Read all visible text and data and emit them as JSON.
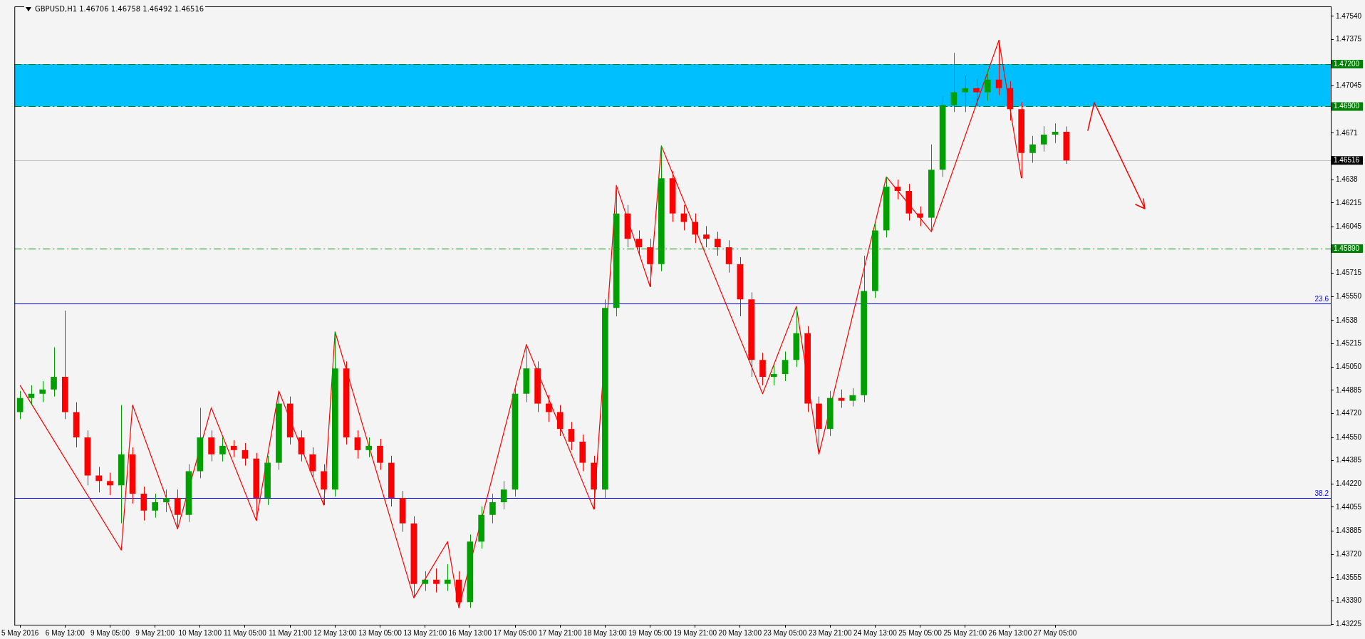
{
  "chart_data": {
    "type": "candlestick",
    "title": "GBPUSD,H1  1.46706 1.46758 1.46492 1.46516",
    "categories": [
      "5 May 2016",
      null,
      null,
      null,
      "6 May 13:00",
      null,
      null,
      null,
      "9 May 05:00",
      null,
      null,
      null,
      "9 May 21:00",
      null,
      null,
      null,
      "10 May 13:00",
      null,
      null,
      null,
      "11 May 05:00",
      null,
      null,
      null,
      "11 May 21:00",
      null,
      null,
      null,
      "12 May 13:00",
      null,
      null,
      null,
      "13 May 05:00",
      null,
      null,
      null,
      "13 May 21:00",
      null,
      null,
      null,
      "16 May 13:00",
      null,
      null,
      null,
      "17 May 05:00",
      null,
      null,
      null,
      "17 May 21:00",
      null,
      null,
      null,
      "18 May 13:00",
      null,
      null,
      null,
      "19 May 05:00",
      null,
      null,
      null,
      "19 May 21:00",
      null,
      null,
      null,
      "20 May 13:00",
      null,
      null,
      null,
      "23 May 05:00",
      null,
      null,
      null,
      "23 May 21:00",
      null,
      null,
      null,
      "24 May 13:00",
      null,
      null,
      null,
      "25 May 05:00",
      null,
      null,
      null,
      "25 May 21:00",
      null,
      null,
      null,
      "26 May 13:00",
      null,
      null,
      null,
      "27 May 05:00",
      null,
      null,
      null,
      null,
      null,
      null,
      null,
      null,
      null,
      null,
      null,
      null,
      null,
      null,
      null,
      null,
      null,
      null,
      null,
      null,
      null,
      null,
      null,
      null
    ],
    "ohlc": [
      [
        1.4473,
        1.4488,
        1.4468,
        1.4483
      ],
      [
        1.4483,
        1.4492,
        1.4478,
        1.4486
      ],
      [
        1.4486,
        1.4495,
        1.448,
        1.4489
      ],
      [
        1.4489,
        1.4519,
        1.4484,
        1.4498
      ],
      [
        1.4498,
        1.4545,
        1.4468,
        1.4473
      ],
      [
        1.4473,
        1.448,
        1.4448,
        1.4455
      ],
      [
        1.4455,
        1.446,
        1.4421,
        1.4428
      ],
      [
        1.4428,
        1.4434,
        1.4416,
        1.4424
      ],
      [
        1.4424,
        1.443,
        1.4414,
        1.4421
      ],
      [
        1.4421,
        1.4478,
        1.4394,
        1.4443
      ],
      [
        1.4443,
        1.4448,
        1.4408,
        1.4415
      ],
      [
        1.4415,
        1.442,
        1.4396,
        1.4403
      ],
      [
        1.4403,
        1.4415,
        1.4398,
        1.4409
      ],
      [
        1.4409,
        1.4418,
        1.4402,
        1.4412
      ],
      [
        1.4412,
        1.4418,
        1.4391,
        1.44
      ],
      [
        1.44,
        1.4436,
        1.4395,
        1.4431
      ],
      [
        1.4431,
        1.4476,
        1.4426,
        1.4455
      ],
      [
        1.4455,
        1.446,
        1.4438,
        1.4443
      ],
      [
        1.4443,
        1.4455,
        1.4438,
        1.4449
      ],
      [
        1.4449,
        1.4453,
        1.4441,
        1.4446
      ],
      [
        1.4446,
        1.4451,
        1.4435,
        1.444
      ],
      [
        1.444,
        1.4444,
        1.4396,
        1.4412
      ],
      [
        1.4412,
        1.4442,
        1.4407,
        1.4437
      ],
      [
        1.4437,
        1.4488,
        1.4432,
        1.4479
      ],
      [
        1.4479,
        1.4484,
        1.445,
        1.4455
      ],
      [
        1.4455,
        1.446,
        1.4438,
        1.4443
      ],
      [
        1.4443,
        1.4448,
        1.4426,
        1.4431
      ],
      [
        1.4431,
        1.4436,
        1.4407,
        1.4418
      ],
      [
        1.4418,
        1.453,
        1.4413,
        1.4504
      ],
      [
        1.4504,
        1.4509,
        1.445,
        1.4455
      ],
      [
        1.4455,
        1.446,
        1.444,
        1.4446
      ],
      [
        1.4446,
        1.4455,
        1.4441,
        1.4449
      ],
      [
        1.4449,
        1.4454,
        1.4432,
        1.4437
      ],
      [
        1.4437,
        1.4442,
        1.4406,
        1.4412
      ],
      [
        1.4412,
        1.4417,
        1.4388,
        1.4394
      ],
      [
        1.4394,
        1.4399,
        1.4342,
        1.4351
      ],
      [
        1.4351,
        1.436,
        1.4346,
        1.4354
      ],
      [
        1.4354,
        1.4362,
        1.4345,
        1.4351
      ],
      [
        1.4351,
        1.4365,
        1.4346,
        1.4354
      ],
      [
        1.4354,
        1.436,
        1.4334,
        1.4338
      ],
      [
        1.4338,
        1.4386,
        1.4334,
        1.4381
      ],
      [
        1.4381,
        1.4406,
        1.4376,
        1.44
      ],
      [
        1.44,
        1.4415,
        1.4394,
        1.4409
      ],
      [
        1.4409,
        1.4424,
        1.4404,
        1.4418
      ],
      [
        1.4418,
        1.4492,
        1.4413,
        1.4486
      ],
      [
        1.4486,
        1.4521,
        1.448,
        1.4504
      ],
      [
        1.4504,
        1.4509,
        1.4473,
        1.4479
      ],
      [
        1.4479,
        1.4485,
        1.4466,
        1.4473
      ],
      [
        1.4473,
        1.4478,
        1.4456,
        1.4461
      ],
      [
        1.4461,
        1.4466,
        1.4446,
        1.4452
      ],
      [
        1.4452,
        1.4457,
        1.4431,
        1.4437
      ],
      [
        1.4437,
        1.4442,
        1.4404,
        1.4418
      ],
      [
        1.4418,
        1.4553,
        1.4412,
        1.4547
      ],
      [
        1.4547,
        1.4634,
        1.4541,
        1.4614
      ],
      [
        1.4614,
        1.462,
        1.459,
        1.4596
      ],
      [
        1.4596,
        1.4602,
        1.4584,
        1.459
      ],
      [
        1.459,
        1.4596,
        1.4562,
        1.4578
      ],
      [
        1.4578,
        1.4662,
        1.4573,
        1.4639
      ],
      [
        1.4639,
        1.4644,
        1.4608,
        1.4614
      ],
      [
        1.4614,
        1.462,
        1.4602,
        1.4608
      ],
      [
        1.4608,
        1.4614,
        1.4593,
        1.4599
      ],
      [
        1.4599,
        1.4605,
        1.459,
        1.4596
      ],
      [
        1.4596,
        1.4601,
        1.4584,
        1.459
      ],
      [
        1.459,
        1.4595,
        1.4572,
        1.4578
      ],
      [
        1.4578,
        1.4583,
        1.4541,
        1.4553
      ],
      [
        1.4553,
        1.4558,
        1.4498,
        1.451
      ],
      [
        1.451,
        1.4515,
        1.4492,
        1.4498
      ],
      [
        1.4498,
        1.4506,
        1.4492,
        1.45
      ],
      [
        1.45,
        1.4516,
        1.4495,
        1.451
      ],
      [
        1.451,
        1.4547,
        1.4505,
        1.4529
      ],
      [
        1.4529,
        1.4534,
        1.4473,
        1.4479
      ],
      [
        1.4479,
        1.4484,
        1.4443,
        1.4461
      ],
      [
        1.4461,
        1.4488,
        1.4456,
        1.4483
      ],
      [
        1.4483,
        1.4489,
        1.4476,
        1.4481
      ],
      [
        1.4481,
        1.449,
        1.4477,
        1.4485
      ],
      [
        1.4485,
        1.4584,
        1.448,
        1.4559
      ],
      [
        1.4559,
        1.4607,
        1.4554,
        1.4602
      ],
      [
        1.4602,
        1.464,
        1.4597,
        1.4633
      ],
      [
        1.4633,
        1.4638,
        1.4624,
        1.463
      ],
      [
        1.463,
        1.4635,
        1.4609,
        1.4614
      ],
      [
        1.4614,
        1.4619,
        1.4605,
        1.4611
      ],
      [
        1.4611,
        1.4663,
        1.4601,
        1.4645
      ],
      [
        1.4645,
        1.4697,
        1.464,
        1.4691
      ],
      [
        1.4691,
        1.4728,
        1.4686,
        1.47
      ],
      [
        1.47,
        1.4712,
        1.4686,
        1.4703
      ],
      [
        1.4703,
        1.471,
        1.469,
        1.47
      ],
      [
        1.47,
        1.4716,
        1.4694,
        1.4709
      ],
      [
        1.4709,
        1.4737,
        1.4698,
        1.4703
      ],
      [
        1.4703,
        1.4708,
        1.468,
        1.4688
      ],
      [
        1.4688,
        1.4693,
        1.4639,
        1.4657
      ],
      [
        1.4657,
        1.4669,
        1.465,
        1.4663
      ],
      [
        1.4663,
        1.4676,
        1.4658,
        1.467
      ],
      [
        1.467,
        1.4678,
        1.4664,
        1.4672
      ],
      [
        1.4672,
        1.46758,
        1.46492,
        1.46516
      ],
      null,
      null,
      null,
      null,
      null,
      null,
      null,
      null,
      null,
      null,
      null,
      null,
      null,
      null,
      null,
      null,
      null,
      null,
      null,
      null,
      null,
      null,
      null
    ],
    "colors": [
      "#00a000",
      "#00a000",
      "#00a000",
      "#00a000",
      "#ff0000",
      "#ff0000",
      "#ff0000",
      "#ff0000",
      "#ff0000",
      "#00a000",
      "#ff0000",
      "#ff0000",
      "#00a000",
      "#00a000",
      "#ff0000",
      "#00a000",
      "#00a000",
      "#ff0000",
      "#00a000",
      "#ff0000",
      "#ff0000",
      "#ff0000",
      "#00a000",
      "#00a000",
      "#ff0000",
      "#ff0000",
      "#ff0000",
      "#ff0000",
      "#00a000",
      "#ff0000",
      "#ff0000",
      "#00a000",
      "#ff0000",
      "#ff0000",
      "#ff0000",
      "#ff0000",
      "#00a000",
      "#ff0000",
      "#00a000",
      "#ff0000",
      "#00a000",
      "#00a000",
      "#00a000",
      "#00a000",
      "#00a000",
      "#00a000",
      "#ff0000",
      "#ff0000",
      "#ff0000",
      "#ff0000",
      "#ff0000",
      "#ff0000",
      "#00a000",
      "#00a000",
      "#ff0000",
      "#ff0000",
      "#ff0000",
      "#00a000",
      "#ff0000",
      "#ff0000",
      "#ff0000",
      "#ff0000",
      "#ff0000",
      "#ff0000",
      "#ff0000",
      "#ff0000",
      "#ff0000",
      "#00a000",
      "#00a000",
      "#00a000",
      "#ff0000",
      "#ff0000",
      "#00a000",
      "#ff0000",
      "#00a000",
      "#00a000",
      "#00a000",
      "#00a000",
      "#ff0000",
      "#ff0000",
      "#ff0000",
      "#00a000",
      "#00a000",
      "#00a000",
      "#00a000",
      "#ff0000",
      "#00a000",
      "#ff0000",
      "#ff0000",
      "#ff0000",
      "#00a000",
      "#00a000",
      "#00a000",
      "#ff0000",
      null,
      null,
      null,
      null,
      null,
      null,
      null,
      null,
      null,
      null,
      null,
      null,
      null,
      null,
      null,
      null,
      null,
      null,
      null,
      null,
      null,
      null,
      null
    ],
    "series": [
      {
        "type": "line",
        "color": "#ff0000",
        "values": [
          1.4492,
          null,
          null,
          null,
          null,
          null,
          null,
          null,
          null,
          1.4375,
          1.4478,
          null,
          null,
          null,
          1.439,
          null,
          null,
          1.4476,
          null,
          null,
          null,
          1.4396,
          null,
          1.4488,
          null,
          null,
          null,
          1.4407,
          1.453,
          null,
          null,
          null,
          null,
          null,
          null,
          1.4341,
          null,
          null,
          1.4381,
          1.4334,
          null,
          null,
          null,
          null,
          null,
          1.4521,
          null,
          null,
          null,
          null,
          null,
          1.4404,
          null,
          1.4634,
          null,
          null,
          1.4562,
          1.4662,
          null,
          null,
          null,
          null,
          null,
          null,
          null,
          null,
          1.4486,
          null,
          null,
          1.4548,
          null,
          1.4443,
          null,
          null,
          null,
          null,
          null,
          1.464,
          null,
          null,
          null,
          1.4601,
          null,
          null,
          null,
          null,
          null,
          1.4737,
          null,
          1.4639,
          null,
          null,
          null,
          null,
          null,
          null,
          null,
          null,
          null,
          null,
          null,
          null,
          null,
          null,
          null,
          null,
          null,
          null,
          null,
          null,
          null,
          null,
          null,
          null,
          null,
          null,
          null
        ]
      }
    ],
    "ylim": [
      1.4322,
      1.4761
    ],
    "yticks": [
      {
        "value": 1.4754,
        "label": "1.47540"
      },
      1.47375,
      {
        "value": 1.4721,
        "label": null
      },
      1.47045,
      {
        "value": 1.4688,
        "label": null
      },
      1.4671,
      {
        "value": 1.46545,
        "label": null
      },
      1.4638,
      1.46215,
      1.46045,
      {
        "value": 1.4588,
        "label": null
      },
      1.45715,
      {
        "value": 1.4555,
        "label": "1.45550"
      },
      1.4538,
      1.45215,
      {
        "value": 1.4505,
        "label": "1.45050"
      },
      1.44885,
      {
        "value": 1.4472,
        "label": "1.44720"
      },
      {
        "value": 1.4455,
        "label": "1.44550"
      },
      1.44385,
      {
        "value": 1.4422,
        "label": "1.44220"
      },
      1.44055,
      1.43885,
      {
        "value": 1.4372,
        "label": "1.43720"
      },
      1.43555,
      {
        "value": 1.4339,
        "label": "1.43390"
      },
      1.43225
    ],
    "ref_lines": [
      {
        "axis": "y",
        "value": 1.472,
        "label": "1.47200",
        "color": "#008000",
        "line_style": "dashed"
      },
      {
        "axis": "y",
        "value": 1.469,
        "label": "1.46900",
        "color": "#008000",
        "line_style": "dashed"
      },
      {
        "axis": "y",
        "value": 1.4589,
        "label": "1.45890",
        "color": "#008000",
        "line_style": "dashed"
      },
      {
        "axis": "y",
        "value": 1.46516,
        "label": "1.46516",
        "color": "#c0c0c0",
        "line_style": "solid"
      },
      {
        "axis": "y",
        "value": 1.455,
        "color": "#0000ff",
        "line_style": "solid"
      },
      {
        "axis": "y",
        "value": 1.4412,
        "color": "#0000ff",
        "line_style": "solid"
      }
    ],
    "annotations": [
      {
        "text": "23.6",
        "y": 1.455
      },
      {
        "text": "38.2",
        "y": 1.4412
      }
    ],
    "bands": [
      {
        "axis": "y",
        "from": 1.469,
        "to": 1.472,
        "color": "#00bfff"
      }
    ]
  }
}
